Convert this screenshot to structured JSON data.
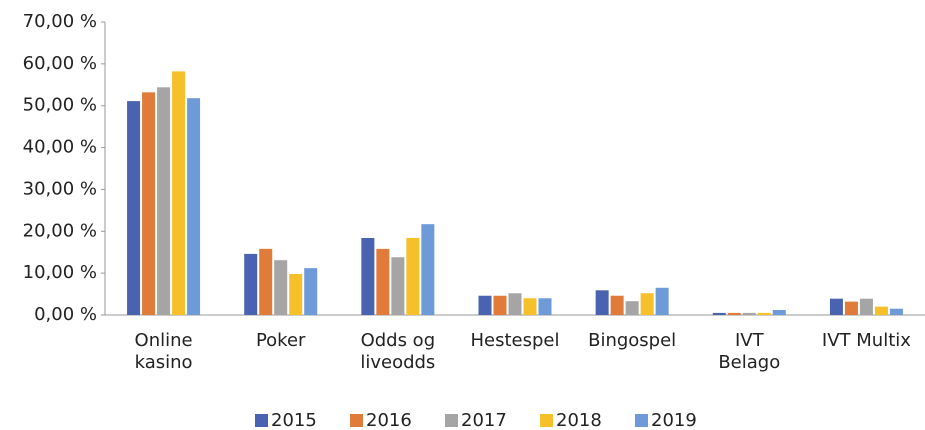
{
  "chart_data": {
    "type": "bar",
    "categories": [
      "Online kasino",
      "Poker",
      "Odds og liveodds",
      "Hestespel",
      "Bingospel",
      "IVT Belago",
      "IVT Multix"
    ],
    "series": [
      {
        "name": "2015",
        "color": "#4a63b0",
        "values": [
          51.1,
          14.6,
          18.4,
          4.6,
          5.9,
          0.5,
          3.9
        ]
      },
      {
        "name": "2016",
        "color": "#e07b39",
        "values": [
          53.2,
          15.8,
          15.8,
          4.6,
          4.6,
          0.5,
          3.2
        ]
      },
      {
        "name": "2017",
        "color": "#a5a5a5",
        "values": [
          54.4,
          13.1,
          13.8,
          5.2,
          3.3,
          0.5,
          3.9
        ]
      },
      {
        "name": "2018",
        "color": "#f5c02a",
        "values": [
          58.2,
          9.8,
          18.4,
          4.0,
          5.2,
          0.5,
          2.0
        ]
      },
      {
        "name": "2019",
        "color": "#6f9ad8",
        "values": [
          51.8,
          11.2,
          21.7,
          4.0,
          6.5,
          1.2,
          1.5
        ]
      }
    ],
    "ylim": [
      0,
      70
    ],
    "yticks": [
      {
        "value": 0,
        "label": "0,00 %"
      },
      {
        "value": 10,
        "label": "10,00 %"
      },
      {
        "value": 20,
        "label": "20,00 %"
      },
      {
        "value": 30,
        "label": "30,00 %"
      },
      {
        "value": 40,
        "label": "40,00 %"
      },
      {
        "value": 50,
        "label": "50,00 %"
      },
      {
        "value": 60,
        "label": "60,00 %"
      },
      {
        "value": 70,
        "label": "70,00 %"
      }
    ],
    "grid": false,
    "legend": "bottom"
  }
}
